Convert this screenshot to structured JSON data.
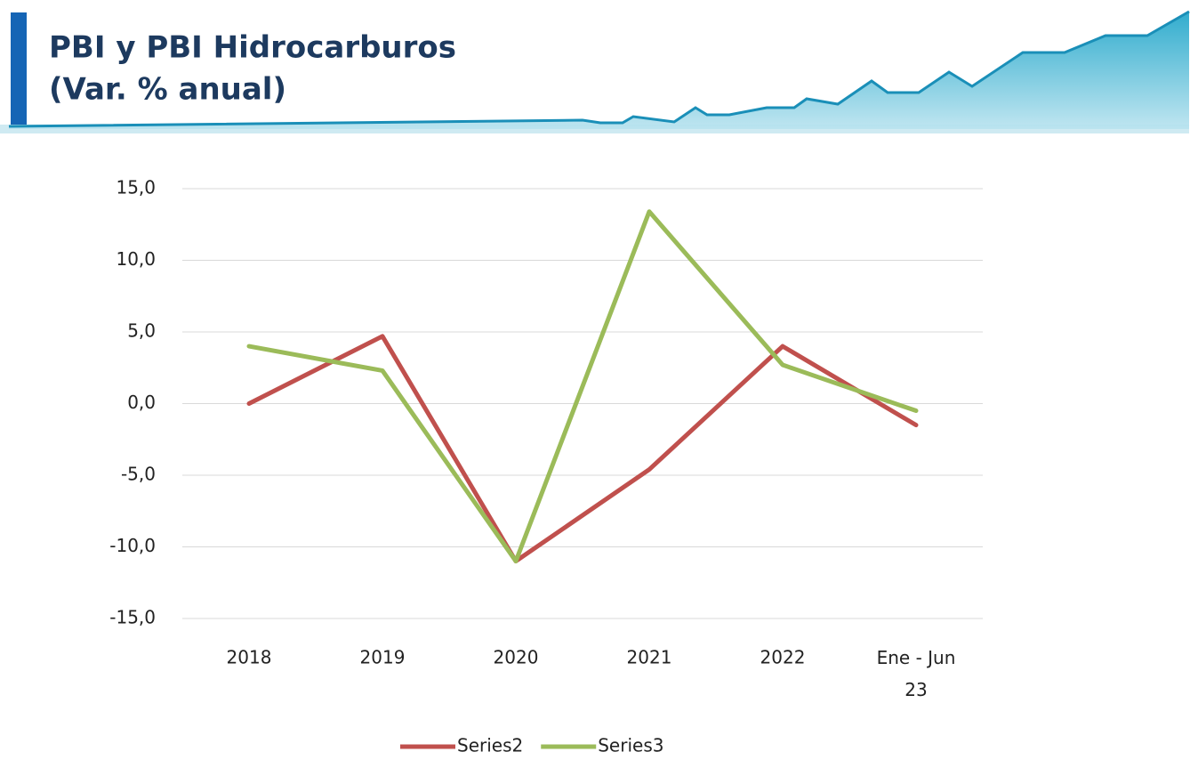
{
  "chart_data": {
    "type": "line",
    "title": "PBI y PBI Hidrocarburos",
    "subtitle": "(Var. % anual)",
    "categories": [
      "2018",
      "2019",
      "2020",
      "2021",
      "2022",
      "Ene - Jun 23"
    ],
    "series": [
      {
        "name": "Series2",
        "color": "#c0504d",
        "values": [
          0.0,
          4.7,
          -11.0,
          -4.6,
          4.0,
          -1.5
        ]
      },
      {
        "name": "Series3",
        "color": "#9bbb59",
        "values": [
          4.0,
          2.3,
          -11.0,
          13.4,
          2.7,
          -0.5
        ]
      }
    ],
    "ylim": [
      -15,
      15
    ],
    "yticks": [
      {
        "value": -15,
        "label": "-15,0"
      },
      {
        "value": -10,
        "label": "-10,0"
      },
      {
        "value": -5,
        "label": "-5,0"
      },
      {
        "value": 0,
        "label": "0,0"
      },
      {
        "value": 5,
        "label": "5,0"
      },
      {
        "value": 10,
        "label": "10,0"
      },
      {
        "value": 15,
        "label": "15,0"
      }
    ],
    "grid": true,
    "legend": "bottom"
  }
}
